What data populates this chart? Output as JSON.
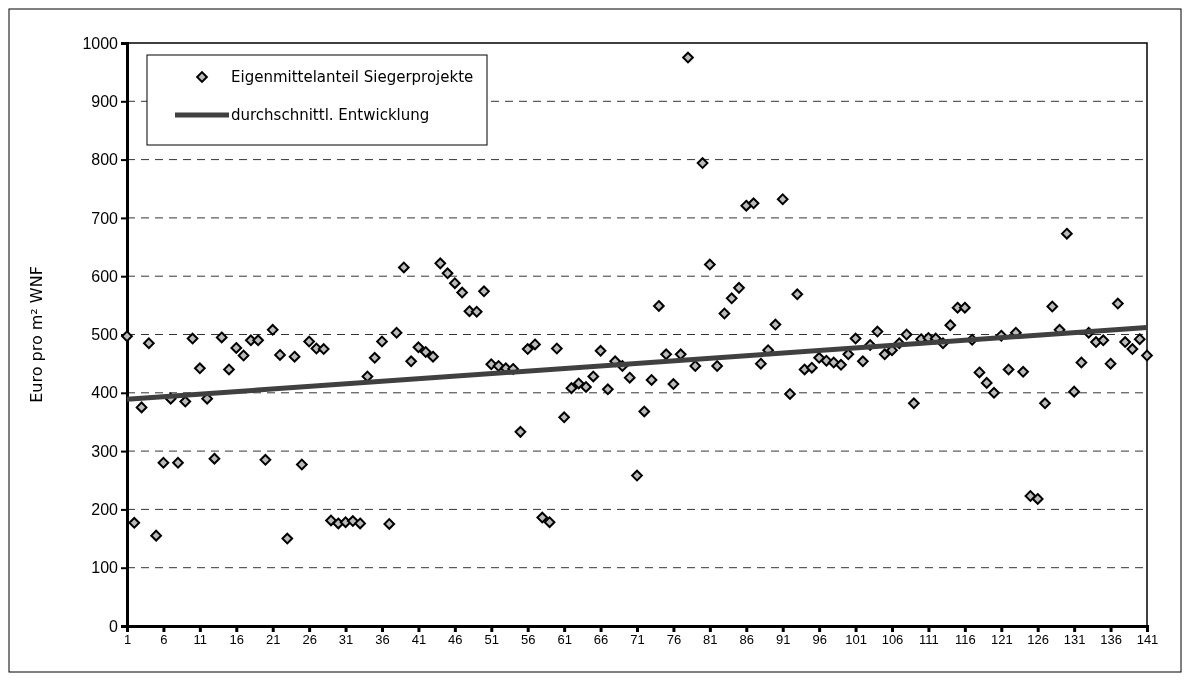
{
  "chart_data": {
    "type": "scatter",
    "ylabel": "Euro pro m² WNF",
    "xlim": [
      1,
      141
    ],
    "xticks": [
      1,
      6,
      11,
      16,
      21,
      26,
      31,
      36,
      41,
      46,
      51,
      56,
      61,
      66,
      71,
      76,
      81,
      86,
      91,
      96,
      101,
      106,
      111,
      116,
      121,
      126,
      131,
      136,
      141
    ],
    "ylim": [
      0,
      1000
    ],
    "yticks": [
      0,
      100,
      200,
      300,
      400,
      500,
      600,
      700,
      800,
      900,
      1000
    ],
    "grid": "y",
    "legend": "top left",
    "series": [
      {
        "name": "Eigenmittelanteil Siegerprojekte",
        "marker": "diamond",
        "color": "#000000",
        "x": [
          1,
          2,
          3,
          4,
          5,
          6,
          7,
          8,
          9,
          10,
          11,
          12,
          13,
          14,
          15,
          16,
          17,
          18,
          19,
          20,
          21,
          22,
          23,
          24,
          25,
          26,
          27,
          28,
          29,
          30,
          31,
          32,
          33,
          34,
          35,
          36,
          37,
          38,
          39,
          40,
          41,
          42,
          43,
          44,
          45,
          46,
          47,
          48,
          49,
          50,
          51,
          52,
          53,
          54,
          55,
          56,
          57,
          58,
          59,
          60,
          61,
          62,
          63,
          64,
          65,
          66,
          67,
          68,
          69,
          70,
          71,
          72,
          73,
          74,
          75,
          76,
          77,
          78,
          79,
          80,
          81,
          82,
          83,
          84,
          85,
          86,
          87,
          88,
          89,
          90,
          91,
          92,
          93,
          94,
          95,
          96,
          97,
          98,
          99,
          100,
          101,
          102,
          103,
          104,
          105,
          106,
          107,
          108,
          109,
          110,
          111,
          112,
          113,
          114,
          115,
          116,
          117,
          118,
          119,
          120,
          121,
          122,
          123,
          124,
          125,
          126,
          127,
          128,
          129,
          130,
          131,
          132,
          133,
          134,
          135,
          136,
          137,
          138,
          139,
          140,
          141
        ],
        "values": [
          497,
          177,
          375,
          485,
          155,
          280,
          390,
          280,
          385,
          493,
          442,
          390,
          287,
          495,
          440,
          477,
          464,
          490,
          490,
          285,
          508,
          465,
          150,
          462,
          277,
          488,
          476,
          475,
          181,
          176,
          178,
          180,
          176,
          428,
          460,
          488,
          175,
          503,
          615,
          454,
          478,
          470,
          462,
          622,
          605,
          588,
          572,
          540,
          539,
          574,
          449,
          446,
          442,
          441,
          333,
          475,
          483,
          186,
          178,
          476,
          358,
          408,
          416,
          410,
          428,
          472,
          406,
          454,
          446,
          426,
          258,
          368,
          422,
          549,
          466,
          415,
          466,
          975,
          446,
          794,
          620,
          446,
          536,
          562,
          580,
          721,
          725,
          450,
          473,
          517,
          732,
          398,
          569,
          440,
          443,
          460,
          455,
          452,
          448,
          466,
          493,
          454,
          482,
          505,
          466,
          473,
          485,
          500,
          382,
          492,
          494,
          493,
          485,
          516,
          546,
          546,
          491,
          435,
          417,
          400,
          498,
          440,
          503,
          436,
          223,
          218,
          382,
          548,
          508,
          673,
          402,
          452,
          503,
          487,
          490,
          450,
          553,
          487,
          475,
          492,
          464
        ]
      },
      {
        "name": "durchschnittl. Entwicklung",
        "type": "line",
        "line_style": "solid",
        "color": "#404040",
        "x": [
          1,
          141
        ],
        "values": [
          389,
          512
        ]
      }
    ]
  }
}
